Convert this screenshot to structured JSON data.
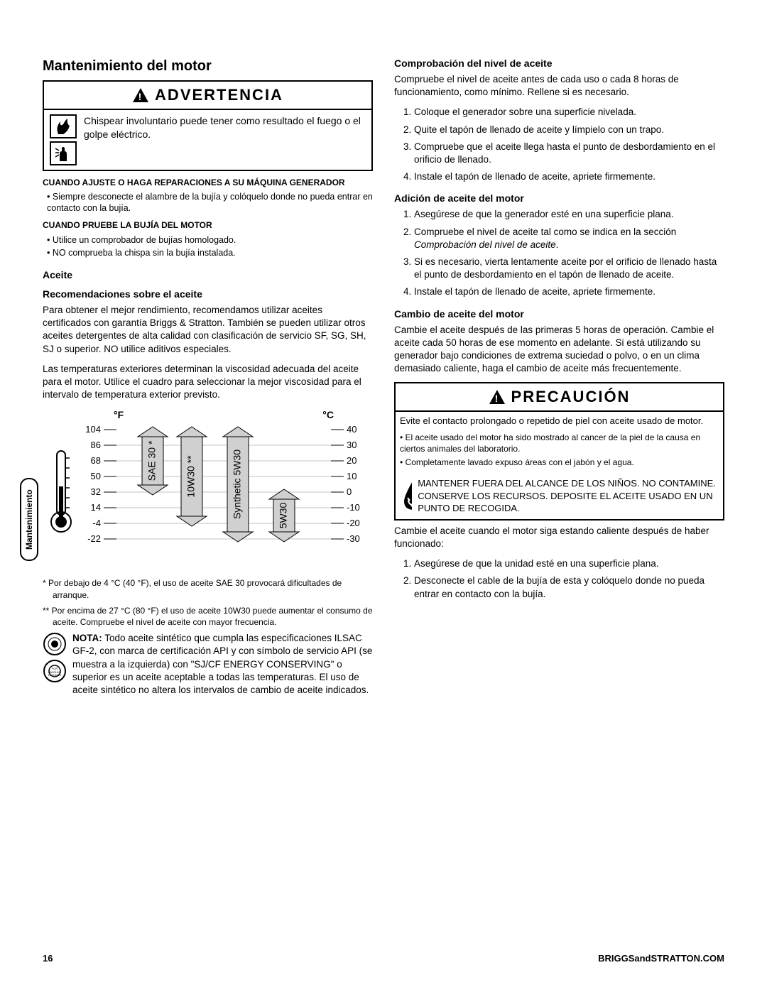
{
  "page": {
    "number": "16",
    "site": "BRIGGSandSTRATTON.COM"
  },
  "sideTab": "Mantenimiento",
  "left": {
    "title": "Mantenimiento del motor",
    "warning": {
      "header": "ADVERTENCIA",
      "text": "Chispear involuntario puede tener como resultado el fuego o el golpe eléctrico."
    },
    "adjust": {
      "heading": "CUANDO AJUSTE O HAGA REPARACIONES A SU MÁQUINA GENERADOR",
      "b1": "Siempre desconecte el alambre de la bujía y colóquelo donde no pueda entrar en contacto con la bujía."
    },
    "test": {
      "heading": "CUANDO PRUEBE LA BUJÍA DEL MOTOR",
      "b1": "Utilice un comprobador de bujías homologado.",
      "b2": "NO comprueba la chispa sin la bujía instalada."
    },
    "oil": {
      "h3a": "Aceite",
      "h3b": "Recomendaciones sobre el aceite",
      "p1": "Para obtener el mejor rendimiento, recomendamos utilizar aceites certificados con garantía Briggs & Stratton. También se pueden utilizar otros aceites detergentes de alta calidad con clasificación de servicio SF, SG, SH, SJ o superior. NO utilice aditivos especiales.",
      "p2": "Las temperaturas exteriores determinan la viscosidad adecuada del aceite para el motor. Utilice el cuadro para seleccionar la mejor viscosidad para el intervalo de temperatura exterior previsto."
    },
    "chart": {
      "f_label": "°F",
      "c_label": "°C",
      "rows": [
        {
          "f": "104",
          "c": "40"
        },
        {
          "f": "86",
          "c": "30"
        },
        {
          "f": "68",
          "c": "20"
        },
        {
          "f": "50",
          "c": "10"
        },
        {
          "f": "32",
          "c": "0"
        },
        {
          "f": "14",
          "c": "-10"
        },
        {
          "f": "-4",
          "c": "-20"
        },
        {
          "f": "-22",
          "c": "-30"
        }
      ],
      "labels": {
        "sae30": "SAE 30 *",
        "w1030": "10W30 **",
        "syn": "Synthetic 5W30",
        "w530": "5W30"
      },
      "colors": {
        "fill": "#d0d0d0",
        "line": "#000"
      }
    },
    "fn1": "* Por debajo de 4 °C (40 °F), el uso de aceite SAE 30 provocará dificultades de arranque.",
    "fn2": "** Por encima de 27 °C (80 °F) el uso de aceite 10W30 puede aumentar el consumo de aceite. Compruebe el nivel de aceite con mayor frecuencia.",
    "nota": "NOTA: Todo aceite sintético que cumpla las especificaciones ILSAC GF-2, con marca de certificación API y con símbolo de servicio API (se muestra a la izquierda) con \"SJ/CF ENERGY CONSERVING\" o superior es un aceite aceptable a todas las temperaturas. El uso de aceite sintético no altera los intervalos de cambio de aceite indicados.",
    "nota_bold": "NOTA:"
  },
  "right": {
    "check": {
      "h": "Comprobación del nivel de aceite",
      "p": "Compruebe el nivel de aceite antes de cada uso o cada 8 horas de funcionamiento, como mínimo. Rellene si es necesario.",
      "l1": "Coloque el generador sobre una superficie nivelada.",
      "l2": "Quite el tapón de llenado de aceite y límpielo con un trapo.",
      "l3": "Compruebe que el aceite llega hasta el punto de desbordamiento en el orificio de llenado.",
      "l4": "Instale el tapón de llenado de aceite, apriete firmemente."
    },
    "add": {
      "h": "Adición de aceite del motor",
      "l1": "Asegúrese de que la generador esté en una superficie plana.",
      "l2a": "Compruebe el nivel de aceite tal como se indica en la sección ",
      "l2b": "Comprobación del nivel de aceite",
      "l2c": ".",
      "l3": "Si es necesario, vierta lentamente aceite por el orificio de llenado hasta el punto de desbordamiento en el tapón de llenado de aceite.",
      "l4": "Instale el tapón de llenado de aceite, apriete firmemente."
    },
    "change": {
      "h": "Cambio de aceite del motor",
      "p": "Cambie el aceite después de las primeras 5 horas de operación. Cambie el aceite cada 50 horas de ese momento en adelante. Si está utilizando su generador bajo condiciones de extrema suciedad o polvo, o en un clima demasiado caliente, haga el cambio de aceite más frecuentemente."
    },
    "caution": {
      "header": "PRECAUCIÓN",
      "p": "Evite el contacto prolongado o repetido de piel con aceite usado de motor.",
      "b1": "El aceite usado del motor ha sido mostrado al cancer de la piel de la causa en ciertos animales del laboratorio.",
      "b2": "Completamente lavado expuso áreas con el jabón y el agua.",
      "keep": "MANTENER FUERA DEL ALCANCE DE LOS NIÑOS. NO CONTAMINE. CONSERVE LOS RECURSOS. DEPOSITE EL ACEITE USADO EN UN PUNTO DE RECOGIDA."
    },
    "after": {
      "p": "Cambie el aceite cuando el motor siga estando caliente después de haber funcionado:",
      "l1": "Asegúrese de que la unidad esté en una superficie plana.",
      "l2": "Desconecte el cable de la bujía de esta y colóquelo donde no pueda entrar en contacto con la bujía."
    }
  }
}
